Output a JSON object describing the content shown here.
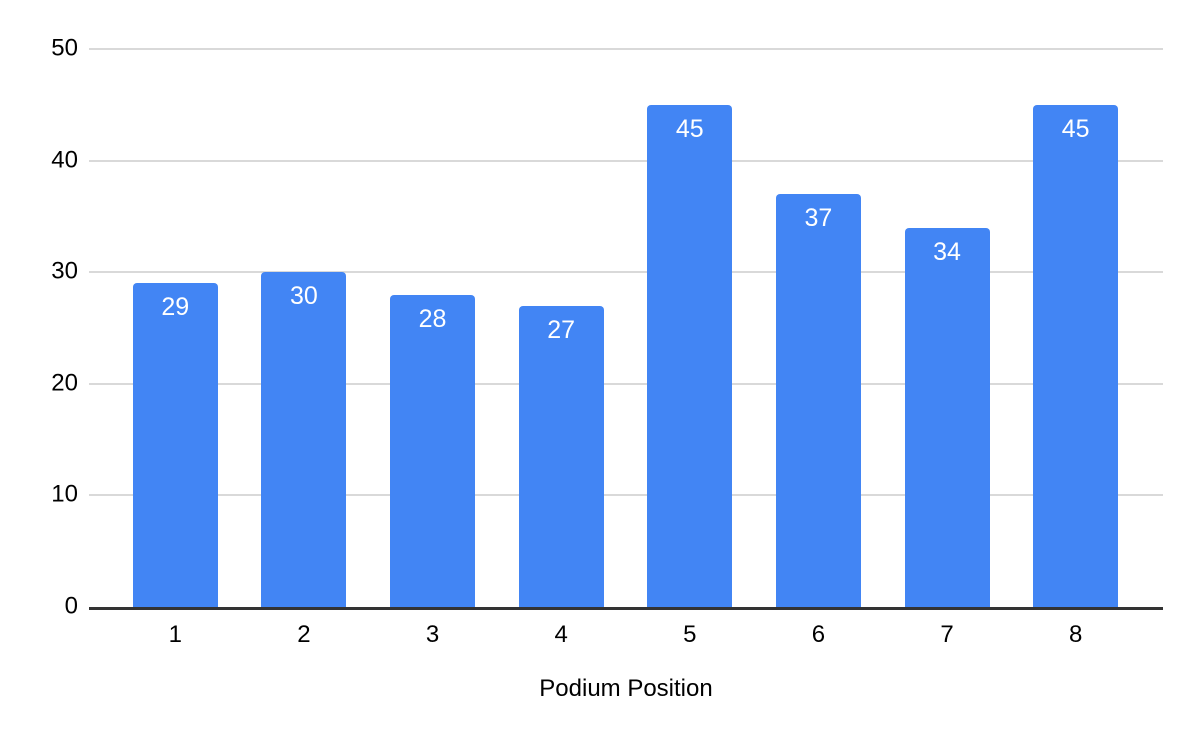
{
  "chart_data": {
    "type": "bar",
    "categories": [
      "1",
      "2",
      "3",
      "4",
      "5",
      "6",
      "7",
      "8"
    ],
    "values": [
      29,
      30,
      28,
      27,
      45,
      37,
      34,
      45
    ],
    "title": "",
    "xlabel": "Podium Position",
    "ylabel": "",
    "ylim": [
      0,
      50
    ],
    "yticks": [
      0,
      10,
      20,
      30,
      40,
      50
    ],
    "grid": true,
    "legend_position": "none",
    "bar_labels_shown": true,
    "colors": {
      "bar": "#4285f4",
      "bar_label": "#ffffff",
      "axis_text": "#000000",
      "gridline": "#d9d9d9",
      "axis_line": "#333333",
      "background": "#ffffff"
    }
  }
}
